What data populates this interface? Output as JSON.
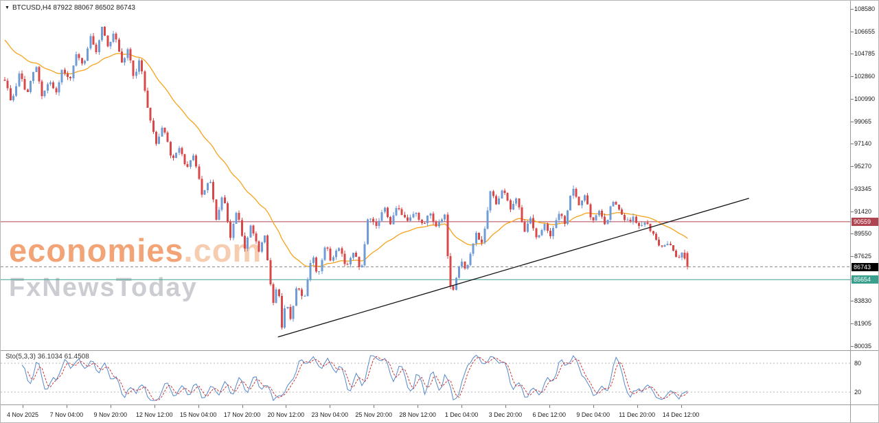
{
  "header": {
    "ohlc_line": "BTCUSD,H4 87922 88067 86502 86743",
    "dropdown_glyph": "▼"
  },
  "watermark": {
    "brand": "economies",
    "brand_suffix": ".com",
    "subbrand": "FxNewsToday",
    "brand_color": "#f2a477",
    "suffix_color": "#f6cdb0",
    "subbrand_color": "#cbcdd2"
  },
  "chart_data": {
    "type": "candlestick",
    "symbol": "BTCUSD",
    "timeframe": "H4",
    "last_candle": {
      "open": 87922,
      "high": 88067,
      "low": 86502,
      "close": 86743
    },
    "y_axis_ticks": [
      "108580",
      "106655",
      "104785",
      "102860",
      "100990",
      "99065",
      "97140",
      "95270",
      "93345",
      "91420",
      "89550",
      "87625",
      "85700",
      "83830",
      "81905",
      "80035"
    ],
    "y_axis_top_value": 108580,
    "y_axis_bottom_value": 80035,
    "x_axis_labels": [
      "4 Nov 2025",
      "7 Nov 04:00",
      "9 Nov 20:00",
      "12 Nov 12:00",
      "15 Nov 04:00",
      "17 Nov 20:00",
      "20 Nov 12:00",
      "23 Nov 04:00",
      "25 Nov 20:00",
      "28 Nov 12:00",
      "1 Dec 04:00",
      "3 Dec 20:00",
      "6 Dec 12:00",
      "9 Dec 04:00",
      "11 Dec 20:00",
      "14 Dec 12:00"
    ],
    "num_candles": 240,
    "up_color": "#6f9cd6",
    "down_color": "#d94848",
    "price_path": [
      [
        0.0,
        102600
      ],
      [
        0.01,
        100600
      ],
      [
        0.022,
        103300
      ],
      [
        0.032,
        101200
      ],
      [
        0.045,
        103900
      ],
      [
        0.055,
        101100
      ],
      [
        0.065,
        102600
      ],
      [
        0.075,
        101300
      ],
      [
        0.085,
        103600
      ],
      [
        0.095,
        102300
      ],
      [
        0.105,
        104800
      ],
      [
        0.115,
        103600
      ],
      [
        0.125,
        106300
      ],
      [
        0.133,
        104800
      ],
      [
        0.143,
        107200
      ],
      [
        0.152,
        105200
      ],
      [
        0.16,
        106600
      ],
      [
        0.172,
        103800
      ],
      [
        0.18,
        105200
      ],
      [
        0.19,
        102600
      ],
      [
        0.198,
        104400
      ],
      [
        0.21,
        99900
      ],
      [
        0.222,
        97200
      ],
      [
        0.232,
        98800
      ],
      [
        0.245,
        95600
      ],
      [
        0.256,
        97000
      ],
      [
        0.266,
        94800
      ],
      [
        0.276,
        96300
      ],
      [
        0.29,
        92600
      ],
      [
        0.3,
        94300
      ],
      [
        0.31,
        90700
      ],
      [
        0.32,
        92900
      ],
      [
        0.33,
        89100
      ],
      [
        0.34,
        91700
      ],
      [
        0.352,
        88100
      ],
      [
        0.36,
        90300
      ],
      [
        0.373,
        87900
      ],
      [
        0.38,
        89600
      ],
      [
        0.393,
        83600
      ],
      [
        0.4,
        85400
      ],
      [
        0.406,
        81500
      ],
      [
        0.412,
        83900
      ],
      [
        0.418,
        82100
      ],
      [
        0.428,
        85200
      ],
      [
        0.438,
        83900
      ],
      [
        0.45,
        87900
      ],
      [
        0.458,
        85900
      ],
      [
        0.47,
        88700
      ],
      [
        0.478,
        87100
      ],
      [
        0.488,
        88600
      ],
      [
        0.5,
        86800
      ],
      [
        0.512,
        88000
      ],
      [
        0.522,
        86300
      ],
      [
        0.532,
        90900
      ],
      [
        0.545,
        90100
      ],
      [
        0.555,
        91900
      ],
      [
        0.565,
        90400
      ],
      [
        0.575,
        91900
      ],
      [
        0.588,
        90600
      ],
      [
        0.6,
        91500
      ],
      [
        0.612,
        90200
      ],
      [
        0.622,
        91400
      ],
      [
        0.632,
        90100
      ],
      [
        0.645,
        91200
      ],
      [
        0.651,
        85200
      ],
      [
        0.657,
        84700
      ],
      [
        0.668,
        87400
      ],
      [
        0.676,
        86400
      ],
      [
        0.69,
        89600
      ],
      [
        0.7,
        88700
      ],
      [
        0.712,
        93300
      ],
      [
        0.72,
        92100
      ],
      [
        0.73,
        93500
      ],
      [
        0.74,
        91600
      ],
      [
        0.75,
        92600
      ],
      [
        0.76,
        89600
      ],
      [
        0.77,
        90900
      ],
      [
        0.78,
        89000
      ],
      [
        0.79,
        90400
      ],
      [
        0.8,
        89400
      ],
      [
        0.812,
        91300
      ],
      [
        0.82,
        90500
      ],
      [
        0.832,
        93500
      ],
      [
        0.84,
        91900
      ],
      [
        0.85,
        92900
      ],
      [
        0.86,
        90300
      ],
      [
        0.87,
        91600
      ],
      [
        0.88,
        90100
      ],
      [
        0.89,
        92400
      ],
      [
        0.9,
        91500
      ],
      [
        0.91,
        90500
      ],
      [
        0.92,
        90900
      ],
      [
        0.93,
        90100
      ],
      [
        0.94,
        90500
      ],
      [
        0.952,
        89200
      ],
      [
        0.962,
        88300
      ],
      [
        0.972,
        88900
      ],
      [
        0.985,
        87500
      ],
      [
        0.993,
        88000
      ],
      [
        1.0,
        86740
      ]
    ],
    "horizontal_lines": [
      {
        "price": 90559,
        "label": "90559",
        "line_color": "#b04552",
        "tag_color": "#b04552",
        "style": "solid"
      },
      {
        "price": 85654,
        "label": "85654",
        "line_color": "#3aa08e",
        "tag_color": "#3aa08e",
        "style": "solid"
      },
      {
        "price": 86743,
        "label": "86743",
        "line_color": "#8a8a8a",
        "tag_color": "#000000",
        "style": "dashed"
      }
    ],
    "trendline": {
      "from": [
        0.4,
        80800
      ],
      "to": [
        1.09,
        92550
      ],
      "color": "#111111"
    },
    "moving_average": {
      "period": 28,
      "seed_value": 106200,
      "color": "#f7a21b"
    },
    "indicator": {
      "name": "Sto(5,3,3)",
      "label": "Sto(5,3,3) 36.1034 61.4508",
      "values": [
        "36.1034",
        "61.4508"
      ],
      "levels": [
        "80",
        "20"
      ],
      "main_color": "#5588cc",
      "signal_color": "#cc3333",
      "level_color": "#b5b5b5"
    }
  }
}
